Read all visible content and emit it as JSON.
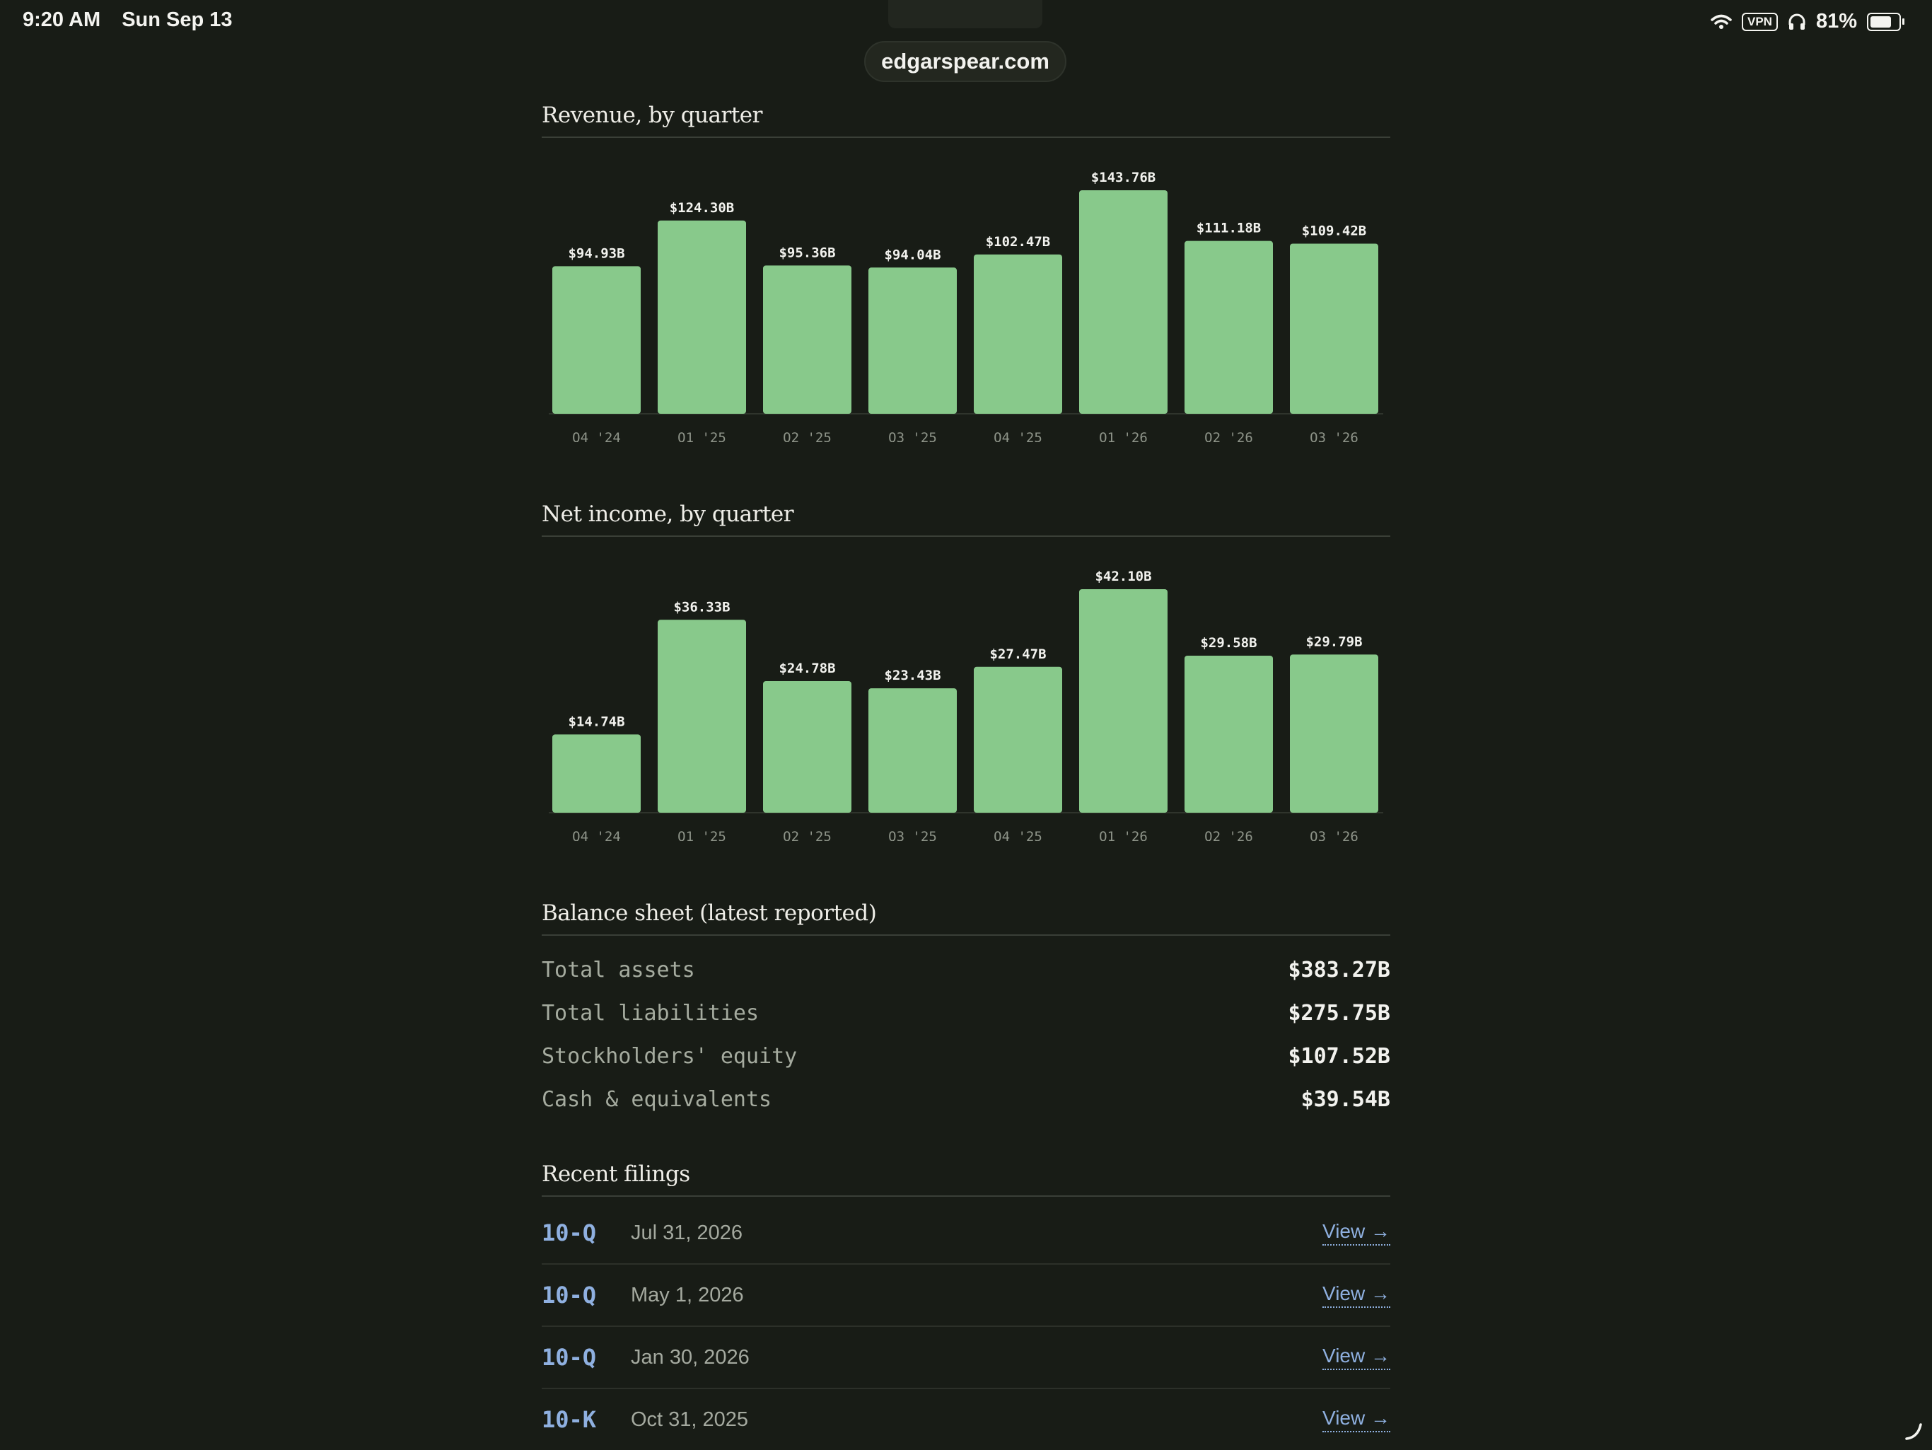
{
  "status_bar": {
    "time": "9:20 AM",
    "date": "Sun Sep 13",
    "vpn_label": "VPN",
    "battery": "81%",
    "battery_level": 0.81,
    "icons": [
      "wifi-icon",
      "headphones-icon",
      "battery-icon"
    ]
  },
  "browser": {
    "url": "edgarspear.com"
  },
  "revenue": {
    "title": "Revenue, by quarter",
    "chart_data": {
      "type": "bar",
      "categories": [
        "Q4 '24",
        "Q1 '25",
        "Q2 '25",
        "Q3 '25",
        "Q4 '25",
        "Q1 '26",
        "Q2 '26",
        "Q3 '26"
      ],
      "values": [
        94.93,
        124.3,
        95.36,
        94.04,
        102.47,
        143.76,
        111.18,
        109.42
      ],
      "labels": [
        "$94.93B",
        "$124.30B",
        "$95.36B",
        "$94.04B",
        "$102.47B",
        "$143.76B",
        "$111.18B",
        "$109.42B"
      ],
      "title": "Revenue, by quarter",
      "xlabel": "",
      "ylabel": "",
      "ylim": [
        0,
        143.76
      ],
      "bar_color": "#88c98b",
      "grid": false
    }
  },
  "net_income": {
    "title": "Net income, by quarter",
    "chart_data": {
      "type": "bar",
      "categories": [
        "Q4 '24",
        "Q1 '25",
        "Q2 '25",
        "Q3 '25",
        "Q4 '25",
        "Q1 '26",
        "Q2 '26",
        "Q3 '26"
      ],
      "values": [
        14.74,
        36.33,
        24.78,
        23.43,
        27.47,
        42.1,
        29.58,
        29.79
      ],
      "labels": [
        "$14.74B",
        "$36.33B",
        "$24.78B",
        "$23.43B",
        "$27.47B",
        "$42.10B",
        "$29.58B",
        "$29.79B"
      ],
      "title": "Net income, by quarter",
      "xlabel": "",
      "ylabel": "",
      "ylim": [
        0,
        42.1
      ],
      "bar_color": "#88c98b",
      "grid": false
    }
  },
  "balance_sheet": {
    "title": "Balance sheet (latest reported)",
    "rows": [
      {
        "label": "Total assets",
        "value": "$383.27B"
      },
      {
        "label": "Total liabilities",
        "value": "$275.75B"
      },
      {
        "label": "Stockholders' equity",
        "value": "$107.52B"
      },
      {
        "label": "Cash & equivalents",
        "value": "$39.54B"
      }
    ]
  },
  "filings": {
    "title": "Recent filings",
    "items": [
      {
        "type": "10-Q",
        "date": "Jul 31, 2026",
        "link": "View →"
      },
      {
        "type": "10-Q",
        "date": "May 1, 2026",
        "link": "View →"
      },
      {
        "type": "10-Q",
        "date": "Jan 30, 2026",
        "link": "View →"
      },
      {
        "type": "10-K",
        "date": "Oct 31, 2025",
        "link": "View →"
      }
    ]
  },
  "colors": {
    "background": "#181c16",
    "bar": "#88c98b",
    "link": "#8fb0e0"
  }
}
